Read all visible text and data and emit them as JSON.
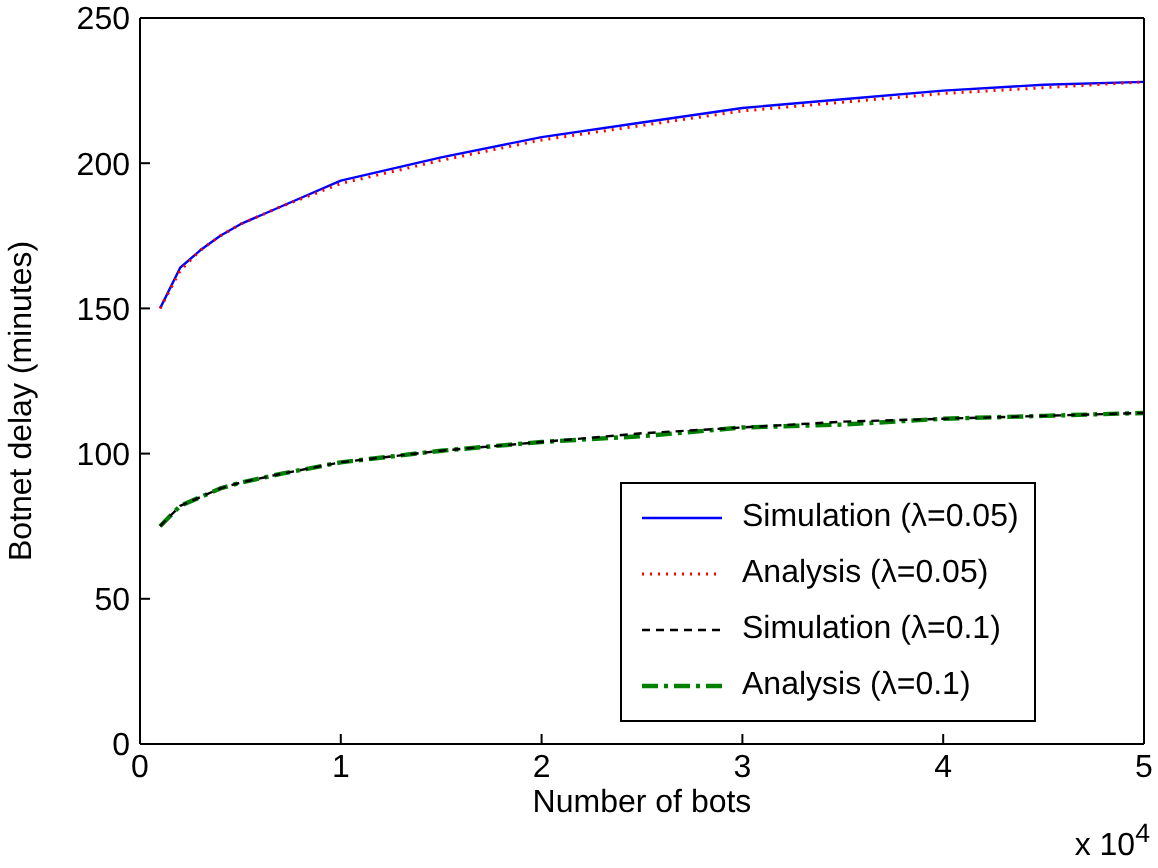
{
  "chart_data": {
    "type": "line",
    "xlabel": "Number of bots",
    "ylabel": "Botnet delay (minutes)",
    "annotations": [
      "x 10$^{4}$"
    ],
    "x": [
      0.1,
      0.2,
      0.3,
      0.4,
      0.5,
      0.7,
      1,
      1.5,
      2,
      2.5,
      3,
      3.5,
      4,
      4.5,
      5
    ],
    "series": [
      {
        "name": "Simulation (λ=0.05)",
        "color": "#0000ff",
        "line_style": "solid",
        "values": [
          150,
          164,
          170,
          175,
          179,
          185,
          194,
          202,
          209,
          214,
          219,
          222,
          225,
          227,
          228
        ]
      },
      {
        "name": "Analysis (λ=0.05)",
        "color": "#ff0000",
        "line_style": "dotted",
        "values": [
          150,
          163,
          170,
          175,
          179,
          185,
          193,
          201,
          208,
          213,
          218,
          221,
          224,
          226,
          228
        ]
      },
      {
        "name": "Simulation (λ=0.1)",
        "color": "#000000",
        "line_style": "dashed",
        "values": [
          75,
          82,
          85,
          88,
          90,
          93,
          97,
          101,
          104,
          107,
          109,
          111,
          112,
          113,
          114
        ]
      },
      {
        "name": "Analysis (λ=0.1)",
        "color": "#008000",
        "line_style": "dashdot",
        "values": [
          75,
          82,
          85,
          88,
          90,
          93,
          97,
          101,
          104,
          106,
          109,
          110,
          112,
          113,
          114
        ]
      }
    ],
    "xlim": [
      0,
      5
    ],
    "xticks": [
      0,
      1,
      2,
      3,
      4,
      5
    ],
    "ylim": [
      0,
      250
    ],
    "yticks": [
      0,
      50,
      100,
      150,
      200,
      250
    ],
    "grid": false,
    "legend": "bottom right",
    "marker": "none"
  }
}
